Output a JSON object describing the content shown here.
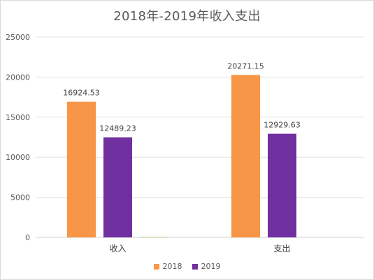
{
  "chart_data": {
    "type": "bar",
    "title": "2018年-2019年收入支出",
    "categories": [
      "收入",
      "支出"
    ],
    "series": [
      {
        "name": "2018",
        "color": "#F79646",
        "values": [
          16924.53,
          20271.15
        ]
      },
      {
        "name": "2019",
        "color": "#7030A0",
        "values": [
          12489.23,
          12929.63
        ]
      },
      {
        "name": "",
        "color": "#9BBB59",
        "values": [
          60,
          0
        ],
        "show_labels": false
      }
    ],
    "value_labels": [
      [
        "16924.53",
        "20271.15"
      ],
      [
        "12489.23",
        "12929.63"
      ]
    ],
    "ylim": [
      0,
      25000
    ],
    "yticks": [
      0,
      5000,
      10000,
      15000,
      20000,
      25000
    ],
    "grid": true,
    "legend_position": "bottom",
    "xlabel": "",
    "ylabel": ""
  }
}
